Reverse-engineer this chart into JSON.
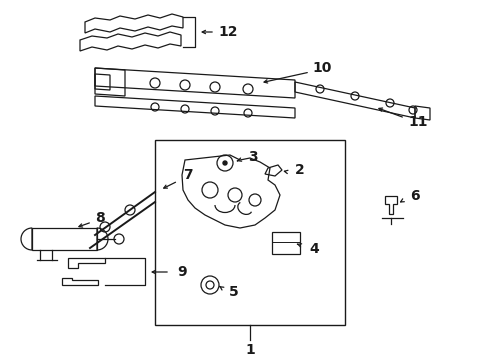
{
  "bg_color": "#ffffff",
  "line_color": "#1a1a1a",
  "figsize": [
    4.89,
    3.6
  ],
  "dpi": 100,
  "label_fontsize": 10,
  "lw": 0.9
}
